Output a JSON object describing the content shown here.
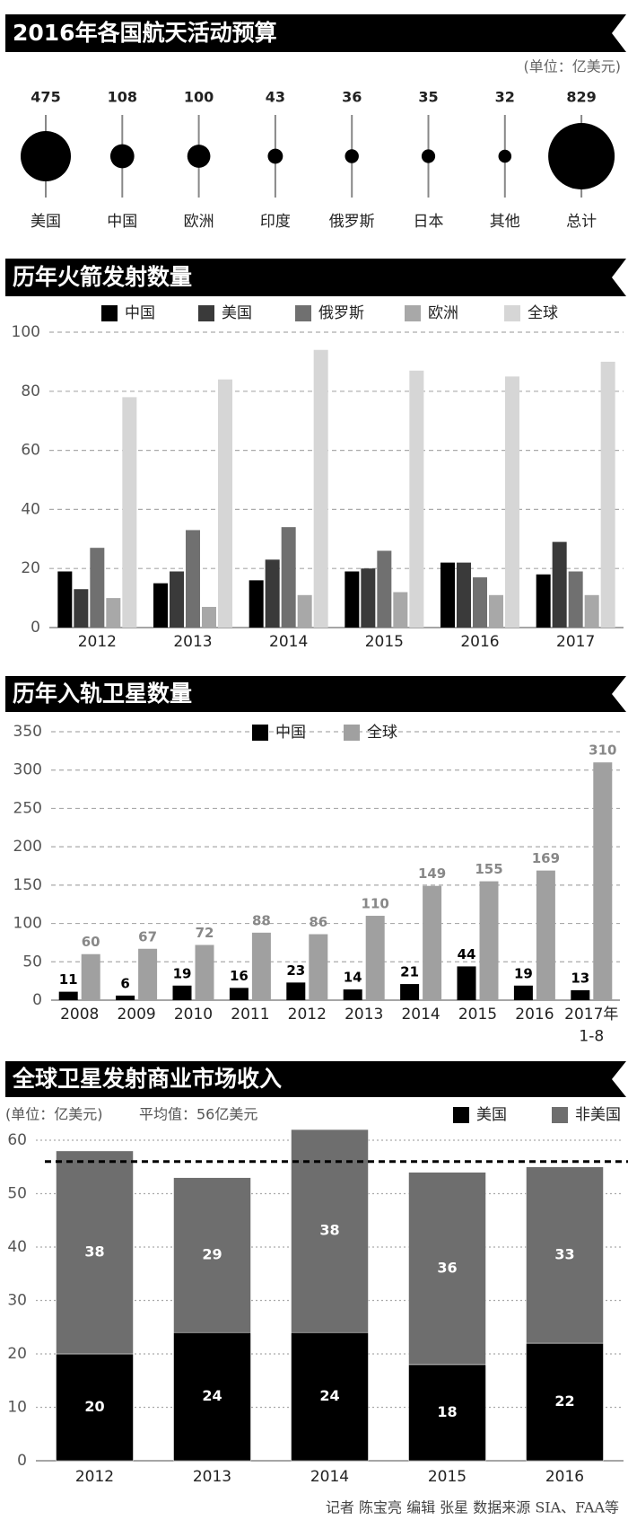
{
  "chart_data": [
    {
      "type": "bubble",
      "title": "2016年各国航天活动预算",
      "unit": "(单位：亿美元)",
      "categories": [
        "美国",
        "中国",
        "欧洲",
        "印度",
        "俄罗斯",
        "日本",
        "其他",
        "总计"
      ],
      "values": [
        475,
        108,
        100,
        43,
        36,
        35,
        32,
        829
      ],
      "color": "#000000"
    },
    {
      "type": "bar",
      "title": "历年火箭发射数量",
      "categories": [
        "2012",
        "2013",
        "2014",
        "2015",
        "2016",
        "2017"
      ],
      "series": [
        {
          "name": "中国",
          "color": "#000000",
          "values": [
            19,
            15,
            16,
            19,
            22,
            18
          ]
        },
        {
          "name": "美国",
          "color": "#3a3a3a",
          "values": [
            13,
            19,
            23,
            20,
            22,
            29
          ]
        },
        {
          "name": "俄罗斯",
          "color": "#707070",
          "values": [
            27,
            33,
            34,
            26,
            17,
            19
          ]
        },
        {
          "name": "欧洲",
          "color": "#a8a8a8",
          "values": [
            10,
            7,
            11,
            12,
            11,
            11
          ]
        },
        {
          "name": "全球",
          "color": "#d6d6d6",
          "values": [
            78,
            84,
            94,
            87,
            85,
            90
          ]
        }
      ],
      "ylim": [
        0,
        100
      ],
      "yticks": [
        0,
        20,
        40,
        60,
        80,
        100
      ],
      "grid": true
    },
    {
      "type": "bar",
      "title": "历年入轨卫星数量",
      "data_labels": true,
      "categories": [
        "2008",
        "2009",
        "2010",
        "2011",
        "2012",
        "2013",
        "2014",
        "2015",
        "2016",
        "2017年\n1-8"
      ],
      "series": [
        {
          "name": "中国",
          "color": "#000000",
          "values": [
            11,
            6,
            19,
            16,
            23,
            14,
            21,
            44,
            19,
            13
          ]
        },
        {
          "name": "全球",
          "color": "#a0a0a0",
          "values": [
            60,
            67,
            72,
            88,
            86,
            110,
            149,
            155,
            169,
            310
          ]
        }
      ],
      "ylim": [
        0,
        350
      ],
      "yticks": [
        0,
        50,
        100,
        150,
        200,
        250,
        300,
        350
      ],
      "grid": true
    },
    {
      "type": "stacked_bar",
      "title": "全球卫星发射商业市场收入",
      "unit": "(单位：亿美元)",
      "annotation": "平均值：56亿美元",
      "average": 56,
      "categories": [
        "2012",
        "2013",
        "2014",
        "2015",
        "2016"
      ],
      "series": [
        {
          "name": "美国",
          "color": "#000000",
          "values": [
            20,
            24,
            24,
            18,
            22
          ]
        },
        {
          "name": "非美国",
          "color": "#6e6e6e",
          "values": [
            38,
            29,
            38,
            36,
            33
          ]
        }
      ],
      "ylim": [
        0,
        60
      ],
      "yticks": [
        0,
        10,
        20,
        30,
        40,
        50,
        60
      ],
      "grid": true
    }
  ],
  "footer": "记者 陈宝亮  编辑 张星    数据来源  SIA、FAA等"
}
